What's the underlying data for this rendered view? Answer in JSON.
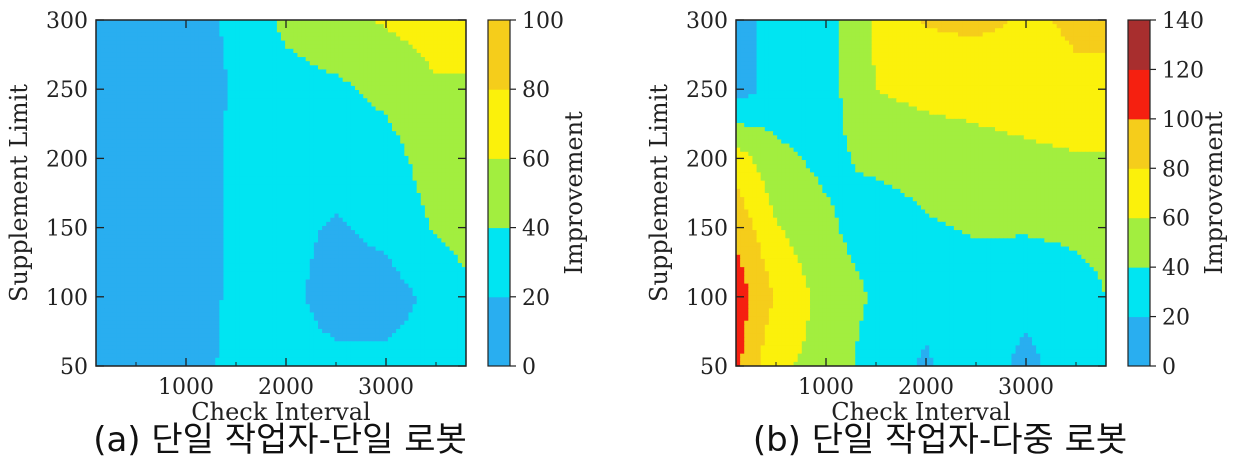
{
  "chart_data": [
    {
      "type": "heatmap",
      "subtype": "filled-contour",
      "caption": "(a) 단일 작업자-단일 로봇",
      "xlabel": "Check Interval",
      "ylabel": "Supplement Limit",
      "colorbar_label": "Improvement",
      "xlim": [
        100,
        3800
      ],
      "ylim": [
        50,
        300
      ],
      "xticks": [
        1000,
        2000,
        3000
      ],
      "xtick_labels": [
        "1000",
        "2000",
        "3000"
      ],
      "yticks": [
        50,
        100,
        150,
        200,
        250,
        300
      ],
      "ytick_labels": [
        "50",
        "100",
        "150",
        "200",
        "250",
        "300"
      ],
      "colorbar_ticks": [
        "0",
        "20",
        "40",
        "60",
        "80",
        "100"
      ],
      "levels": [
        {
          "range": [
            0,
            20
          ],
          "color": "#29aef0"
        },
        {
          "range": [
            20,
            40
          ],
          "color": "#00e5f2"
        },
        {
          "range": [
            40,
            60
          ],
          "color": "#a2ee3f"
        },
        {
          "range": [
            60,
            80
          ],
          "color": "#fbf10b"
        },
        {
          "range": [
            80,
            100
          ],
          "color": "#f5cd1b"
        }
      ],
      "x": [
        100,
        500,
        1000,
        1500,
        2000,
        2500,
        3000,
        3500,
        3800
      ],
      "y": [
        50,
        100,
        150,
        200,
        250,
        300
      ],
      "z": [
        [
          10,
          10,
          12,
          25,
          25,
          25,
          25,
          25,
          25
        ],
        [
          10,
          10,
          10,
          24,
          25,
          12,
          12,
          25,
          35
        ],
        [
          10,
          10,
          10,
          24,
          25,
          18,
          25,
          42,
          48
        ],
        [
          10,
          10,
          10,
          24,
          26,
          28,
          32,
          50,
          52
        ],
        [
          10,
          10,
          10,
          22,
          32,
          36,
          45,
          58,
          58
        ],
        [
          10,
          10,
          12,
          24,
          45,
          55,
          62,
          68,
          68
        ]
      ]
    },
    {
      "type": "heatmap",
      "subtype": "filled-contour",
      "caption": "(b) 단일 작업자-다중 로봇",
      "xlabel": "Check Interval",
      "ylabel": "Supplement Limit",
      "colorbar_label": "Improvement",
      "xlim": [
        100,
        3800
      ],
      "ylim": [
        50,
        300
      ],
      "xticks": [
        1000,
        2000,
        3000
      ],
      "xtick_labels": [
        "1000",
        "2000",
        "3000"
      ],
      "yticks": [
        50,
        100,
        150,
        200,
        250,
        300
      ],
      "ytick_labels": [
        "50",
        "100",
        "150",
        "200",
        "250",
        "300"
      ],
      "colorbar_ticks": [
        "0",
        "20",
        "40",
        "60",
        "80",
        "100",
        "120",
        "140"
      ],
      "levels": [
        {
          "range": [
            0,
            20
          ],
          "color": "#29aef0"
        },
        {
          "range": [
            20,
            40
          ],
          "color": "#00e5f2"
        },
        {
          "range": [
            40,
            60
          ],
          "color": "#a2ee3f"
        },
        {
          "range": [
            60,
            80
          ],
          "color": "#fbf10b"
        },
        {
          "range": [
            80,
            100
          ],
          "color": "#f5cd1b"
        },
        {
          "range": [
            100,
            120
          ],
          "color": "#f52010"
        },
        {
          "range": [
            120,
            140
          ],
          "color": "#a82e2e"
        }
      ],
      "x": [
        100,
        500,
        1000,
        1500,
        2000,
        2500,
        3000,
        3500,
        3800
      ],
      "y": [
        50,
        100,
        150,
        200,
        250,
        300
      ],
      "z": [
        [
          105,
          62,
          55,
          28,
          18,
          30,
          15,
          30,
          38
        ],
        [
          112,
          78,
          52,
          38,
          24,
          30,
          25,
          32,
          40
        ],
        [
          95,
          62,
          44,
          28,
          38,
          42,
          42,
          44,
          46
        ],
        [
          70,
          45,
          35,
          45,
          48,
          52,
          55,
          58,
          58
        ],
        [
          10,
          28,
          32,
          60,
          66,
          68,
          72,
          78,
          78
        ],
        [
          10,
          28,
          32,
          64,
          82,
          84,
          78,
          82,
          82
        ]
      ]
    }
  ]
}
